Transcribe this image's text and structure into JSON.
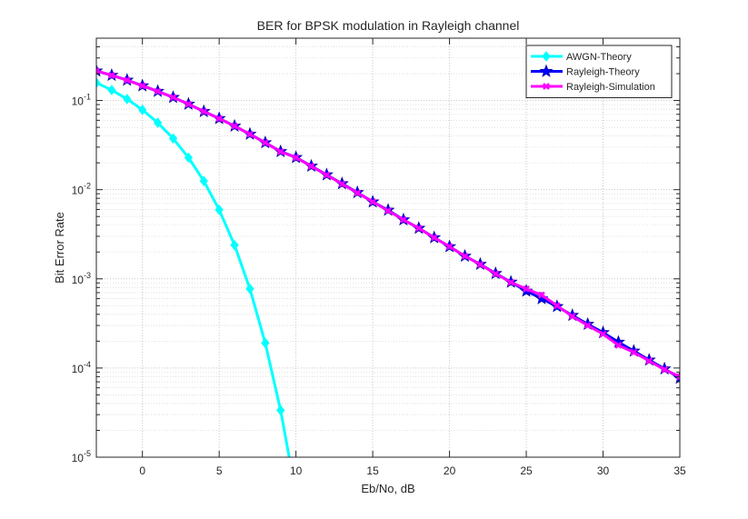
{
  "chart_data": {
    "type": "line",
    "title": "BER for BPSK modulation in Rayleigh channel",
    "xlabel": "Eb/No, dB",
    "ylabel": "Bit Error Rate",
    "xlim": [
      -3,
      35
    ],
    "ylim": [
      1e-05,
      0.5
    ],
    "yscale": "log",
    "grid": true,
    "legend_position": "top-right",
    "x_ticks": [
      0,
      5,
      10,
      15,
      20,
      25,
      30,
      35
    ],
    "x_tick_labels": [
      "0",
      "5",
      "10",
      "15",
      "20",
      "25",
      "30",
      "35"
    ],
    "y_ticks": [
      1e-05,
      0.0001,
      0.001,
      0.01,
      0.1
    ],
    "y_tick_labels": [
      {
        "base": "10",
        "exp": "-5"
      },
      {
        "base": "10",
        "exp": "-4"
      },
      {
        "base": "10",
        "exp": "-3"
      },
      {
        "base": "10",
        "exp": "-2"
      },
      {
        "base": "10",
        "exp": "-1"
      }
    ],
    "series": [
      {
        "name": "AWGN-Theory",
        "color": "#00ffff",
        "marker": "diamond",
        "x": [
          -3,
          -2,
          -1,
          0,
          1,
          2,
          3,
          4,
          5,
          6,
          7,
          8,
          9,
          10
        ],
        "y": [
          0.158,
          0.131,
          0.104,
          0.0786,
          0.0563,
          0.0375,
          0.0229,
          0.0125,
          0.00595,
          0.00239,
          0.000773,
          0.000191,
          3.36e-05,
          3.87e-06
        ]
      },
      {
        "name": "Rayleigh-Theory",
        "color": "#0000ff",
        "marker": "star",
        "x": [
          -3,
          -2,
          -1,
          0,
          1,
          2,
          3,
          4,
          5,
          6,
          7,
          8,
          9,
          10,
          11,
          12,
          13,
          14,
          15,
          16,
          17,
          18,
          19,
          20,
          21,
          22,
          23,
          24,
          25,
          26,
          27,
          28,
          29,
          30,
          31,
          32,
          33,
          34,
          35
        ],
        "y": [
          0.2145,
          0.1919,
          0.1694,
          0.1464,
          0.1269,
          0.1085,
          0.0912,
          0.0754,
          0.0629,
          0.0517,
          0.042,
          0.0337,
          0.0268,
          0.023,
          0.0184,
          0.0147,
          0.0117,
          0.0093,
          0.0073,
          0.0059,
          0.0046,
          0.0037,
          0.0029,
          0.0023,
          0.0018,
          0.00146,
          0.00115,
          0.00092,
          0.00073,
          0.0006,
          0.00049,
          0.00039,
          0.00031,
          0.00025,
          0.000195,
          0.000155,
          0.000123,
          9.8e-05,
          7.7e-05
        ]
      },
      {
        "name": "Rayleigh-Simulation",
        "color": "#ff00ff",
        "marker": "x",
        "x": [
          -3,
          -2,
          -1,
          0,
          1,
          2,
          3,
          4,
          5,
          6,
          7,
          8,
          9,
          10,
          11,
          12,
          13,
          14,
          15,
          16,
          17,
          18,
          19,
          20,
          21,
          22,
          23,
          24,
          25,
          26,
          27,
          28,
          29,
          30,
          31,
          32,
          33,
          34,
          35
        ],
        "y": [
          0.2142,
          0.1917,
          0.1691,
          0.1462,
          0.1268,
          0.1084,
          0.0911,
          0.0753,
          0.0628,
          0.0516,
          0.0419,
          0.0336,
          0.0267,
          0.0229,
          0.0183,
          0.0146,
          0.0116,
          0.0092,
          0.0073,
          0.0058,
          0.0046,
          0.0037,
          0.0029,
          0.0023,
          0.0018,
          0.00145,
          0.00114,
          0.000915,
          0.00077,
          0.00066,
          0.0005,
          0.00038,
          0.0003,
          0.00024,
          0.00018,
          0.00015,
          0.00012,
          9.6e-05,
          8e-05
        ]
      }
    ]
  }
}
